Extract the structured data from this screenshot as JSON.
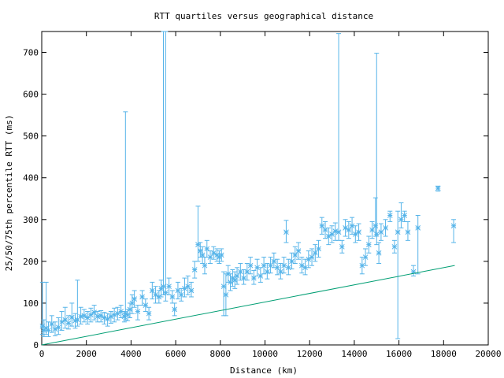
{
  "chart_data": {
    "type": "scatter",
    "title": "RTT quartiles versus geographical distance",
    "xlabel": "Distance (km)",
    "ylabel": "25/50/75th percentile RTT (ms)",
    "xlim": [
      0,
      20000
    ],
    "ylim": [
      0,
      750
    ],
    "xticks": [
      0,
      2000,
      4000,
      6000,
      8000,
      10000,
      12000,
      14000,
      16000,
      18000,
      20000
    ],
    "yticks": [
      0,
      100,
      200,
      300,
      400,
      500,
      600,
      700
    ],
    "grid": false,
    "legend": "none",
    "colors": {
      "points": "#56b4e9",
      "reference": "#009e73",
      "axes": "#000000"
    },
    "series": [
      {
        "style": "errorbars-with-median-markers",
        "points": [
          [
            30,
            45,
            25,
            150
          ],
          [
            100,
            35,
            20,
            60
          ],
          [
            200,
            40,
            25,
            150
          ],
          [
            300,
            35,
            20,
            55
          ],
          [
            450,
            50,
            30,
            70
          ],
          [
            600,
            38,
            22,
            55
          ],
          [
            750,
            42,
            25,
            65
          ],
          [
            900,
            55,
            35,
            80
          ],
          [
            1050,
            60,
            40,
            90
          ],
          [
            1200,
            52,
            38,
            70
          ],
          [
            1350,
            66,
            45,
            100
          ],
          [
            1500,
            58,
            40,
            75
          ],
          [
            1600,
            60,
            45,
            155
          ],
          [
            1750,
            68,
            50,
            90
          ],
          [
            1900,
            70,
            55,
            85
          ],
          [
            2050,
            65,
            50,
            80
          ],
          [
            2200,
            72,
            55,
            88
          ],
          [
            2350,
            78,
            60,
            95
          ],
          [
            2500,
            68,
            55,
            80
          ],
          [
            2650,
            70,
            55,
            82
          ],
          [
            2800,
            65,
            50,
            78
          ],
          [
            2950,
            62,
            45,
            75
          ],
          [
            3100,
            68,
            52,
            80
          ],
          [
            3250,
            72,
            55,
            88
          ],
          [
            3400,
            75,
            60,
            90
          ],
          [
            3550,
            80,
            65,
            95
          ],
          [
            3700,
            68,
            55,
            80
          ],
          [
            3750,
            75,
            60,
            558
          ],
          [
            3850,
            72,
            58,
            85
          ],
          [
            3950,
            85,
            65,
            100
          ],
          [
            4050,
            100,
            75,
            120
          ],
          [
            4150,
            110,
            90,
            130
          ],
          [
            4300,
            80,
            60,
            95
          ],
          [
            4500,
            115,
            95,
            130
          ],
          [
            4650,
            95,
            80,
            110
          ],
          [
            4800,
            75,
            60,
            90
          ],
          [
            4950,
            130,
            110,
            150
          ],
          [
            5100,
            120,
            100,
            140
          ],
          [
            5250,
            115,
            100,
            130
          ],
          [
            5350,
            135,
            115,
            155
          ],
          [
            5450,
            140,
            120,
            750
          ],
          [
            5550,
            125,
            105,
            750
          ],
          [
            5700,
            140,
            120,
            160
          ],
          [
            5850,
            115,
            100,
            130
          ],
          [
            5950,
            85,
            70,
            100
          ],
          [
            6100,
            130,
            110,
            150
          ],
          [
            6250,
            120,
            105,
            135
          ],
          [
            6400,
            135,
            115,
            160
          ],
          [
            6550,
            140,
            120,
            165
          ],
          [
            6700,
            130,
            115,
            150
          ],
          [
            6850,
            180,
            160,
            200
          ],
          [
            7000,
            240,
            200,
            332
          ],
          [
            7100,
            225,
            210,
            245
          ],
          [
            7200,
            215,
            195,
            235
          ],
          [
            7300,
            190,
            170,
            210
          ],
          [
            7400,
            230,
            210,
            250
          ],
          [
            7550,
            210,
            195,
            225
          ],
          [
            7700,
            220,
            205,
            235
          ],
          [
            7850,
            215,
            200,
            230
          ],
          [
            7950,
            210,
            195,
            225
          ],
          [
            8050,
            215,
            200,
            230
          ],
          [
            8150,
            140,
            70,
            175
          ],
          [
            8250,
            120,
            70,
            170
          ],
          [
            8350,
            170,
            150,
            190
          ],
          [
            8450,
            150,
            130,
            170
          ],
          [
            8550,
            160,
            140,
            180
          ],
          [
            8650,
            155,
            135,
            175
          ],
          [
            8750,
            165,
            145,
            185
          ],
          [
            8900,
            175,
            155,
            195
          ],
          [
            9050,
            160,
            145,
            180
          ],
          [
            9200,
            175,
            155,
            195
          ],
          [
            9350,
            190,
            170,
            210
          ],
          [
            9500,
            160,
            145,
            178
          ],
          [
            9650,
            185,
            165,
            205
          ],
          [
            9800,
            165,
            150,
            185
          ],
          [
            9950,
            190,
            170,
            210
          ],
          [
            10100,
            175,
            158,
            195
          ],
          [
            10250,
            190,
            172,
            210
          ],
          [
            10400,
            200,
            185,
            220
          ],
          [
            10550,
            185,
            168,
            205
          ],
          [
            10700,
            175,
            158,
            195
          ],
          [
            10850,
            190,
            172,
            210
          ],
          [
            10950,
            270,
            245,
            298
          ],
          [
            11050,
            185,
            168,
            205
          ],
          [
            11200,
            200,
            182,
            220
          ],
          [
            11350,
            215,
            195,
            235
          ],
          [
            11500,
            225,
            205,
            245
          ],
          [
            11650,
            190,
            172,
            210
          ],
          [
            11800,
            185,
            168,
            205
          ],
          [
            11950,
            205,
            185,
            225
          ],
          [
            12100,
            210,
            190,
            230
          ],
          [
            12250,
            220,
            200,
            240
          ],
          [
            12400,
            230,
            210,
            250
          ],
          [
            12550,
            285,
            265,
            305
          ],
          [
            12700,
            275,
            255,
            295
          ],
          [
            12850,
            260,
            240,
            280
          ],
          [
            13000,
            265,
            245,
            285
          ],
          [
            13150,
            272,
            250,
            292
          ],
          [
            13300,
            270,
            250,
            745
          ],
          [
            13450,
            235,
            220,
            250
          ],
          [
            13600,
            280,
            260,
            300
          ],
          [
            13750,
            275,
            255,
            295
          ],
          [
            13900,
            285,
            265,
            305
          ],
          [
            14050,
            265,
            245,
            285
          ],
          [
            14200,
            270,
            250,
            290
          ],
          [
            14350,
            190,
            170,
            210
          ],
          [
            14500,
            210,
            190,
            230
          ],
          [
            14650,
            240,
            220,
            260
          ],
          [
            14800,
            275,
            255,
            295
          ],
          [
            14950,
            285,
            260,
            352
          ],
          [
            15000,
            265,
            240,
            698
          ],
          [
            15100,
            220,
            195,
            245
          ],
          [
            15200,
            270,
            250,
            290
          ],
          [
            15400,
            280,
            260,
            300
          ],
          [
            15600,
            310,
            295,
            320
          ],
          [
            15800,
            235,
            220,
            250
          ],
          [
            15950,
            270,
            15,
            320
          ],
          [
            16100,
            300,
            280,
            340
          ],
          [
            16250,
            310,
            295,
            320
          ],
          [
            16400,
            270,
            250,
            295
          ],
          [
            16650,
            175,
            165,
            190
          ],
          [
            16850,
            280,
            170,
            310
          ],
          [
            17750,
            375,
            368,
            380
          ],
          [
            18450,
            285,
            245,
            300
          ]
        ]
      },
      {
        "style": "line",
        "x": [
          0,
          18500
        ],
        "y": [
          0,
          190
        ]
      }
    ]
  }
}
